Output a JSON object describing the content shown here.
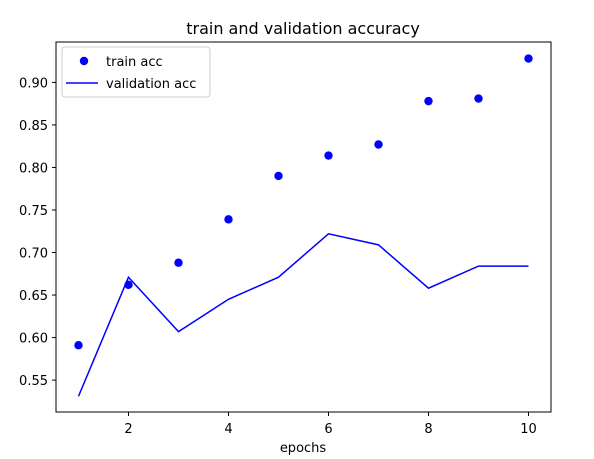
{
  "chart_data": {
    "type": "line",
    "title": "train and validation accuracy",
    "xlabel": "epochs",
    "ylabel": "",
    "x": [
      1,
      2,
      3,
      4,
      5,
      6,
      7,
      8,
      9,
      10
    ],
    "xlim": [
      0.55,
      10.45
    ],
    "ylim": [
      0.5125,
      0.9475
    ],
    "xticks": [
      2,
      4,
      6,
      8,
      10
    ],
    "yticks": [
      0.55,
      0.6,
      0.65,
      0.7,
      0.75,
      0.8,
      0.85,
      0.9
    ],
    "ytick_labels": [
      "0.55",
      "0.60",
      "0.65",
      "0.70",
      "0.75",
      "0.80",
      "0.85",
      "0.90"
    ],
    "grid": false,
    "legend_position": "top-left",
    "series": [
      {
        "name": "train acc",
        "style": "markers",
        "color": "#0000ff",
        "values": [
          0.591,
          0.662,
          0.688,
          0.739,
          0.79,
          0.814,
          0.827,
          0.878,
          0.881,
          0.928
        ]
      },
      {
        "name": "validation acc",
        "style": "line",
        "color": "#0000ff",
        "values": [
          0.531,
          0.671,
          0.607,
          0.645,
          0.671,
          0.722,
          0.709,
          0.658,
          0.684,
          0.684
        ]
      }
    ]
  }
}
